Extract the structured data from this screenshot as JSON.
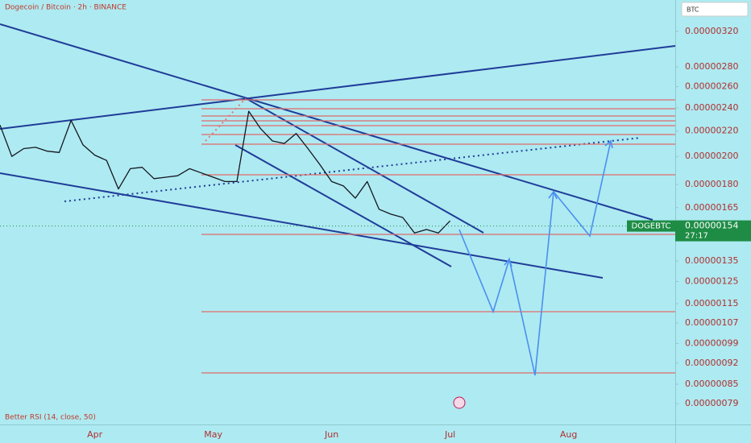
{
  "chart_data": {
    "type": "line",
    "title": "Dogecoin / Bitcoin · 2h · BINANCE",
    "currency": "BTC",
    "indicator": "Better RSI (14, close, 50)",
    "log_scale": true,
    "grid": false,
    "categories": [
      null,
      null,
      null,
      null,
      null,
      null,
      null,
      null,
      "Apr",
      null,
      null,
      null,
      null,
      null,
      null,
      null,
      null,
      null,
      "May",
      null,
      null,
      null,
      null,
      null,
      null,
      null,
      null,
      null,
      "Jun",
      null,
      null,
      null,
      null,
      null,
      null,
      null,
      null,
      null,
      "Jul",
      null,
      null,
      null,
      null,
      null,
      null,
      null,
      null,
      null,
      "Aug",
      null,
      null,
      null,
      null,
      null,
      null,
      null,
      null
    ],
    "series": [
      {
        "name": "DOGEBTC",
        "color": "#131722",
        "values": [
          2.25e-06,
          2e-06,
          2.06e-06,
          2.07e-06,
          2.04e-06,
          2.03e-06,
          2.29e-06,
          2.09e-06,
          2.01e-06,
          1.97e-06,
          1.77e-06,
          1.91e-06,
          1.92e-06,
          1.84e-06,
          1.85e-06,
          1.86e-06,
          1.91e-06,
          1.88e-06,
          1.85e-06,
          1.82e-06,
          1.82e-06,
          2.37e-06,
          2.22e-06,
          2.12e-06,
          2.1e-06,
          2.18e-06,
          2.06e-06,
          1.94e-06,
          1.82e-06,
          1.79e-06,
          1.71e-06,
          1.82e-06,
          1.64e-06,
          1.61e-06,
          1.59e-06,
          1.5e-06,
          1.52e-06,
          1.5e-06,
          1.57e-06,
          null,
          null,
          null,
          null,
          null,
          null,
          null,
          null,
          null,
          null,
          null,
          null,
          null,
          null,
          null,
          null,
          null,
          null
        ]
      }
    ],
    "last_price": {
      "symbol": "DOGEBTC",
      "value": 1.54e-06,
      "label": "0.00000154",
      "countdown": "27:17",
      "color": "#1e8c45"
    },
    "ylim": [
      7.35e-07,
      3.6e-06
    ],
    "yticks": [
      {
        "value": 3.2e-06,
        "label": "0.00000320"
      },
      {
        "value": 2.8e-06,
        "label": "0.00000280"
      },
      {
        "value": 2.6e-06,
        "label": "0.00000260"
      },
      {
        "value": 2.4e-06,
        "label": "0.00000240"
      },
      {
        "value": 2.2e-06,
        "label": "0.00000220"
      },
      {
        "value": 2e-06,
        "label": "0.00000200"
      },
      {
        "value": 1.8e-06,
        "label": "0.00000180"
      },
      {
        "value": 1.65e-06,
        "label": "0.00000165"
      },
      {
        "value": 1.35e-06,
        "label": "0.00000135"
      },
      {
        "value": 1.25e-06,
        "label": "0.00000125"
      },
      {
        "value": 1.15e-06,
        "label": "0.00000115"
      },
      {
        "value": 1.07e-06,
        "label": "0.00000107"
      },
      {
        "value": 9.9e-07,
        "label": "0.00000099"
      },
      {
        "value": 9.2e-07,
        "label": "0.00000092"
      },
      {
        "value": 8.5e-07,
        "label": "0.00000085"
      },
      {
        "value": 7.9e-07,
        "label": "0.00000079"
      }
    ]
  }
}
